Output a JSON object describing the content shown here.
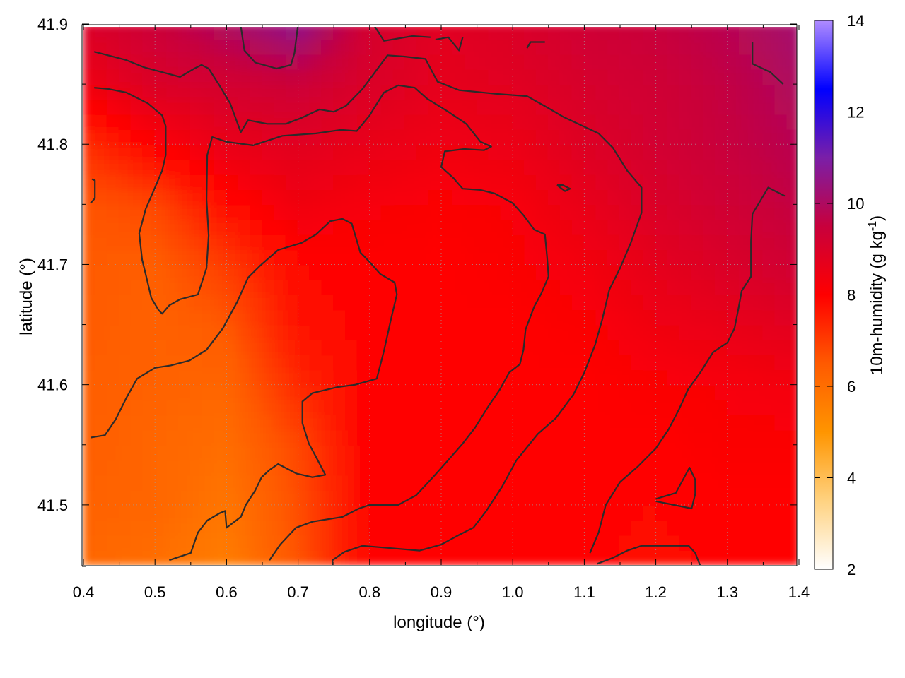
{
  "chart_data": {
    "type": "heatmap",
    "title": "",
    "xlabel": "longitude (°)",
    "ylabel": "latitude (°)",
    "colorbar_label": "10m-humidity (g kg",
    "colorbar_label_sup": "-1",
    "colorbar_label_end": ")",
    "xlim": [
      0.4,
      1.4
    ],
    "ylim": [
      41.45,
      41.9
    ],
    "clim": [
      2,
      14
    ],
    "x_ticks": [
      "0.4",
      "0.5",
      "0.6",
      "0.7",
      "0.8",
      "0.9",
      "1.0",
      "1.1",
      "1.2",
      "1.3",
      "1.4"
    ],
    "y_ticks": [
      "41.5",
      "41.6",
      "41.7",
      "41.8",
      "41.9"
    ],
    "c_ticks": [
      "2",
      "4",
      "6",
      "8",
      "10",
      "12",
      "14"
    ],
    "grid": true,
    "colormap": [
      "#ffffff",
      "#ffd280",
      "#ff9500",
      "#ff5a00",
      "#ff0000",
      "#c8003c",
      "#7a1fa8",
      "#0000ff",
      "#b08cff"
    ],
    "humidity_grid": {
      "x": [
        0.4,
        0.5,
        0.6,
        0.7,
        0.8,
        0.9,
        1.0,
        1.1,
        1.2,
        1.3,
        1.4
      ],
      "y": [
        41.45,
        41.5,
        41.55,
        41.6,
        41.65,
        41.7,
        41.75,
        41.8,
        41.85,
        41.9
      ],
      "values": [
        [
          6.2,
          6.0,
          5.6,
          6.6,
          7.9,
          8.0,
          8.0,
          8.0,
          7.8,
          8.0,
          8.0
        ],
        [
          6.3,
          6.2,
          5.8,
          6.7,
          8.0,
          8.0,
          8.0,
          7.9,
          7.9,
          8.0,
          8.0
        ],
        [
          6.4,
          6.2,
          6.0,
          6.8,
          8.0,
          8.0,
          8.0,
          8.0,
          8.0,
          8.1,
          8.1
        ],
        [
          6.4,
          6.3,
          6.2,
          7.3,
          8.0,
          8.0,
          8.0,
          8.0,
          8.1,
          8.2,
          8.3
        ],
        [
          6.5,
          6.3,
          6.5,
          7.7,
          8.0,
          8.0,
          8.0,
          8.1,
          8.4,
          8.6,
          8.8
        ],
        [
          6.5,
          6.4,
          7.0,
          7.9,
          8.0,
          8.0,
          8.1,
          8.3,
          8.7,
          9.0,
          9.3
        ],
        [
          6.6,
          6.8,
          7.8,
          8.4,
          8.2,
          8.1,
          8.2,
          8.6,
          9.0,
          9.3,
          9.6
        ],
        [
          7.2,
          8.0,
          8.6,
          8.8,
          8.6,
          8.4,
          8.5,
          8.9,
          9.2,
          9.5,
          9.8
        ],
        [
          8.4,
          9.0,
          9.2,
          9.4,
          9.0,
          8.7,
          8.8,
          9.1,
          9.3,
          9.6,
          10.0
        ],
        [
          9.0,
          9.4,
          10.0,
          10.6,
          9.2,
          8.8,
          9.0,
          9.3,
          9.5,
          9.8,
          10.2
        ]
      ]
    },
    "contours": [
      [
        [
          0.415,
          41.877
        ],
        [
          0.46,
          41.87
        ],
        [
          0.485,
          41.864
        ],
        [
          0.535,
          41.856
        ],
        [
          0.555,
          41.863
        ],
        [
          0.565,
          41.866
        ],
        [
          0.575,
          41.863
        ],
        [
          0.59,
          41.849
        ],
        [
          0.605,
          41.834
        ],
        [
          0.62,
          41.81
        ],
        [
          0.63,
          41.82
        ],
        [
          0.657,
          41.817
        ],
        [
          0.683,
          41.817
        ],
        [
          0.705,
          41.822
        ],
        [
          0.73,
          41.829
        ],
        [
          0.75,
          41.827
        ],
        [
          0.767,
          41.832
        ],
        [
          0.79,
          41.846
        ],
        [
          0.81,
          41.862
        ],
        [
          0.825,
          41.874
        ],
        [
          0.848,
          41.873
        ],
        [
          0.878,
          41.871
        ],
        [
          0.895,
          41.852
        ],
        [
          0.925,
          41.845
        ],
        [
          0.975,
          41.842
        ],
        [
          1.02,
          41.84
        ],
        [
          1.05,
          41.83
        ],
        [
          1.07,
          41.823
        ],
        [
          1.095,
          41.816
        ],
        [
          1.12,
          41.809
        ],
        [
          1.14,
          41.797
        ],
        [
          1.16,
          41.778
        ],
        [
          1.18,
          41.764
        ],
        [
          1.18,
          41.743
        ],
        [
          1.165,
          41.718
        ],
        [
          1.15,
          41.697
        ],
        [
          1.135,
          41.679
        ],
        [
          1.125,
          41.654
        ],
        [
          1.115,
          41.633
        ],
        [
          1.1,
          41.61
        ],
        [
          1.085,
          41.592
        ],
        [
          1.06,
          41.572
        ],
        [
          1.035,
          41.559
        ],
        [
          1.005,
          41.537
        ],
        [
          0.985,
          41.515
        ],
        [
          0.963,
          41.495
        ],
        [
          0.945,
          41.481
        ],
        [
          0.925,
          41.475
        ],
        [
          0.9,
          41.467
        ],
        [
          0.87,
          41.462
        ],
        [
          0.83,
          41.464
        ],
        [
          0.79,
          41.466
        ],
        [
          0.765,
          41.461
        ],
        [
          0.748,
          41.454
        ],
        [
          0.748,
          41.441
        ]
      ],
      [
        [
          0.415,
          41.847
        ],
        [
          0.435,
          41.846
        ],
        [
          0.46,
          41.843
        ],
        [
          0.49,
          41.834
        ],
        [
          0.51,
          41.824
        ],
        [
          0.515,
          41.815
        ],
        [
          0.515,
          41.791
        ],
        [
          0.51,
          41.778
        ],
        [
          0.5,
          41.764
        ],
        [
          0.487,
          41.746
        ],
        [
          0.478,
          41.726
        ],
        [
          0.482,
          41.704
        ],
        [
          0.487,
          41.692
        ],
        [
          0.495,
          41.672
        ],
        [
          0.505,
          41.662
        ],
        [
          0.51,
          41.659
        ],
        [
          0.52,
          41.666
        ],
        [
          0.535,
          41.671
        ],
        [
          0.56,
          41.675
        ],
        [
          0.572,
          41.697
        ],
        [
          0.575,
          41.724
        ],
        [
          0.572,
          41.754
        ],
        [
          0.573,
          41.791
        ],
        [
          0.58,
          41.806
        ],
        [
          0.6,
          41.802
        ],
        [
          0.637,
          41.799
        ],
        [
          0.678,
          41.807
        ],
        [
          0.725,
          41.809
        ],
        [
          0.76,
          41.812
        ],
        [
          0.782,
          41.811
        ],
        [
          0.8,
          41.824
        ],
        [
          0.805,
          41.829
        ],
        [
          0.82,
          41.843
        ],
        [
          0.84,
          41.849
        ],
        [
          0.863,
          41.847
        ],
        [
          0.88,
          41.838
        ],
        [
          0.91,
          41.827
        ],
        [
          0.935,
          41.817
        ],
        [
          0.955,
          41.802
        ],
        [
          0.97,
          41.798
        ],
        [
          0.96,
          41.795
        ],
        [
          0.932,
          41.796
        ],
        [
          0.905,
          41.794
        ],
        [
          0.9,
          41.781
        ],
        [
          0.917,
          41.772
        ],
        [
          0.93,
          41.763
        ],
        [
          0.955,
          41.762
        ],
        [
          0.975,
          41.759
        ],
        [
          1.0,
          41.751
        ],
        [
          1.015,
          41.741
        ],
        [
          1.03,
          41.729
        ],
        [
          1.045,
          41.725
        ],
        [
          1.048,
          41.706
        ],
        [
          1.05,
          41.69
        ],
        [
          1.04,
          41.676
        ],
        [
          1.03,
          41.665
        ],
        [
          1.018,
          41.646
        ],
        [
          1.015,
          41.629
        ],
        [
          1.01,
          41.617
        ],
        [
          0.995,
          41.61
        ],
        [
          0.982,
          41.596
        ],
        [
          0.967,
          41.583
        ],
        [
          0.947,
          41.564
        ],
        [
          0.93,
          41.551
        ],
        [
          0.905,
          41.534
        ],
        [
          0.89,
          41.524
        ],
        [
          0.865,
          41.508
        ],
        [
          0.84,
          41.5
        ],
        [
          0.8,
          41.5
        ],
        [
          0.785,
          41.497
        ],
        [
          0.762,
          41.49
        ],
        [
          0.72,
          41.486
        ],
        [
          0.697,
          41.481
        ],
        [
          0.675,
          41.467
        ],
        [
          0.66,
          41.454
        ]
      ],
      [
        [
          0.41,
          41.556
        ],
        [
          0.43,
          41.558
        ],
        [
          0.445,
          41.571
        ],
        [
          0.46,
          41.589
        ],
        [
          0.475,
          41.605
        ],
        [
          0.5,
          41.614
        ],
        [
          0.522,
          41.616
        ],
        [
          0.548,
          41.62
        ],
        [
          0.572,
          41.629
        ],
        [
          0.595,
          41.647
        ],
        [
          0.615,
          41.669
        ],
        [
          0.63,
          41.689
        ],
        [
          0.647,
          41.699
        ],
        [
          0.672,
          41.712
        ],
        [
          0.705,
          41.718
        ],
        [
          0.725,
          41.725
        ],
        [
          0.745,
          41.736
        ],
        [
          0.762,
          41.738
        ],
        [
          0.775,
          41.734
        ],
        [
          0.787,
          41.71
        ],
        [
          0.8,
          41.702
        ],
        [
          0.815,
          41.692
        ],
        [
          0.835,
          41.685
        ],
        [
          0.838,
          41.675
        ],
        [
          0.83,
          41.655
        ],
        [
          0.82,
          41.628
        ],
        [
          0.81,
          41.605
        ],
        [
          0.78,
          41.6
        ],
        [
          0.755,
          41.598
        ],
        [
          0.72,
          41.593
        ],
        [
          0.706,
          41.586
        ],
        [
          0.706,
          41.568
        ],
        [
          0.715,
          41.551
        ],
        [
          0.725,
          41.54
        ],
        [
          0.738,
          41.525
        ],
        [
          0.72,
          41.523
        ],
        [
          0.698,
          41.526
        ],
        [
          0.672,
          41.534
        ],
        [
          0.66,
          41.529
        ],
        [
          0.649,
          41.523
        ],
        [
          0.64,
          41.512
        ],
        [
          0.627,
          41.5
        ],
        [
          0.62,
          41.49
        ],
        [
          0.6,
          41.481
        ],
        [
          0.598,
          41.495
        ],
        [
          0.59,
          41.493
        ],
        [
          0.573,
          41.487
        ],
        [
          0.56,
          41.477
        ],
        [
          0.55,
          41.46
        ],
        [
          0.52,
          41.454
        ]
      ],
      [
        [
          1.265,
          41.445
        ],
        [
          1.255,
          41.46
        ],
        [
          1.246,
          41.466
        ],
        [
          1.237,
          41.466
        ],
        [
          1.22,
          41.466
        ],
        [
          1.18,
          41.466
        ],
        [
          1.16,
          41.462
        ],
        [
          1.14,
          41.456
        ],
        [
          1.118,
          41.451
        ]
      ],
      [
        [
          1.108,
          41.46
        ],
        [
          1.12,
          41.477
        ],
        [
          1.13,
          41.5
        ],
        [
          1.15,
          41.519
        ],
        [
          1.175,
          41.532
        ],
        [
          1.2,
          41.547
        ],
        [
          1.218,
          41.563
        ],
        [
          1.232,
          41.579
        ],
        [
          1.245,
          41.596
        ],
        [
          1.262,
          41.61
        ],
        [
          1.28,
          41.627
        ],
        [
          1.3,
          41.635
        ],
        [
          1.31,
          41.647
        ],
        [
          1.315,
          41.662
        ],
        [
          1.32,
          41.678
        ],
        [
          1.333,
          41.69
        ],
        [
          1.333,
          41.719
        ],
        [
          1.335,
          41.742
        ],
        [
          1.357,
          41.764
        ],
        [
          1.38,
          41.757
        ]
      ],
      [
        [
          1.2,
          41.503
        ],
        [
          1.25,
          41.497
        ],
        [
          1.255,
          41.509
        ],
        [
          1.255,
          41.521
        ],
        [
          1.247,
          41.531
        ],
        [
          1.228,
          41.51
        ],
        [
          1.2,
          41.505
        ]
      ],
      [
        [
          1.062,
          41.766
        ],
        [
          1.07,
          41.766
        ],
        [
          1.08,
          41.763
        ],
        [
          1.073,
          41.761
        ],
        [
          1.062,
          41.766
        ]
      ],
      [
        [
          0.412,
          41.771
        ],
        [
          0.416,
          41.77
        ],
        [
          0.416,
          41.755
        ],
        [
          0.41,
          41.751
        ]
      ],
      [
        [
          0.62,
          41.898
        ],
        [
          0.625,
          41.878
        ],
        [
          0.64,
          41.868
        ],
        [
          0.67,
          41.863
        ],
        [
          0.69,
          41.866
        ],
        [
          0.695,
          41.876
        ],
        [
          0.7,
          41.9
        ]
      ],
      [
        [
          0.805,
          41.9
        ],
        [
          0.82,
          41.886
        ],
        [
          0.86,
          41.89
        ],
        [
          0.885,
          41.889
        ]
      ],
      [
        [
          0.892,
          41.887
        ],
        [
          0.91,
          41.889
        ],
        [
          0.925,
          41.878
        ],
        [
          0.93,
          41.889
        ]
      ],
      [
        [
          1.02,
          41.88
        ],
        [
          1.025,
          41.885
        ],
        [
          1.045,
          41.885
        ]
      ],
      [
        [
          1.335,
          41.885
        ],
        [
          1.335,
          41.867
        ],
        [
          1.36,
          41.86
        ],
        [
          1.378,
          41.85
        ]
      ],
      [
        [
          1.315,
          41.445
        ],
        [
          1.32,
          41.448
        ],
        [
          1.322,
          41.443
        ]
      ]
    ]
  }
}
